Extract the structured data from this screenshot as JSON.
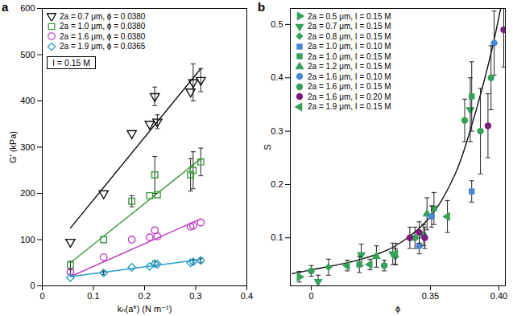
{
  "chart_data": [
    {
      "type": "scatter",
      "title": "a",
      "x_label": "kₙ(a*) (N m⁻¹)",
      "y_label": "G′ (kPa)",
      "xlim": [
        0,
        0.4
      ],
      "xticks": [
        0,
        0.1,
        0.2,
        0.3,
        0.4
      ],
      "ylim": [
        0,
        600
      ],
      "yticks": [
        0,
        100,
        200,
        300,
        400,
        500,
        600
      ],
      "annotation": "I = 0.15 M",
      "series": [
        {
          "name": "2a = 0.7 μm, ϕ = 0.0380",
          "color": "#111111",
          "marker": "open-triangle-down",
          "x": [
            0.055,
            0.12,
            0.175,
            0.21,
            0.22,
            0.225,
            0.29,
            0.295,
            0.31
          ],
          "values": [
            95,
            200,
            330,
            350,
            410,
            355,
            420,
            440,
            445
          ],
          "errors": [
            null,
            null,
            null,
            null,
            20,
            15,
            null,
            40,
            25
          ],
          "fit": {
            "x": [
              0.055,
              0.31
            ],
            "values": [
              125,
              470
            ]
          }
        },
        {
          "name": "2a = 1.0 μm, ϕ = 0.0380",
          "color": "#3a9a3a",
          "marker": "open-square",
          "x": [
            0.055,
            0.12,
            0.175,
            0.21,
            0.22,
            0.225,
            0.29,
            0.295,
            0.31
          ],
          "values": [
            45,
            100,
            183,
            195,
            240,
            197,
            240,
            250,
            268
          ],
          "errors": [
            8,
            null,
            12,
            null,
            40,
            null,
            35,
            40,
            30
          ],
          "fit": {
            "x": [
              0.055,
              0.31
            ],
            "values": [
              50,
              275
            ]
          }
        },
        {
          "name": "2a = 1.6 μm, ϕ = 0.0380",
          "color": "#c23fc2",
          "marker": "open-circle",
          "x": [
            0.055,
            0.12,
            0.175,
            0.21,
            0.22,
            0.225,
            0.29,
            0.295,
            0.31
          ],
          "values": [
            30,
            62,
            100,
            105,
            120,
            107,
            128,
            130,
            137
          ],
          "errors": [
            5,
            null,
            null,
            null,
            null,
            null,
            null,
            null,
            null
          ],
          "fit": {
            "x": [
              0.055,
              0.31
            ],
            "values": [
              20,
              145
            ]
          }
        },
        {
          "name": "2a = 1.9 μm, ϕ = 0.0365",
          "color": "#2b9fc9",
          "marker": "open-diamond",
          "x": [
            0.055,
            0.12,
            0.175,
            0.21,
            0.22,
            0.225,
            0.29,
            0.295,
            0.31
          ],
          "values": [
            18,
            28,
            40,
            42,
            48,
            47,
            50,
            52,
            55
          ],
          "errors": [
            null,
            4,
            null,
            null,
            6,
            null,
            null,
            5,
            5
          ],
          "fit": {
            "x": [
              0.055,
              0.31
            ],
            "values": [
              20,
              57
            ]
          }
        }
      ]
    },
    {
      "type": "scatter",
      "title": "b",
      "x_label": "ϕ",
      "y_label": "S",
      "xlim": [
        -0.21,
        0.404
      ],
      "xticks": [
        0,
        0.35,
        {
          "value": 0.4,
          "label": "0.40"
        }
      ],
      "ylim": [
        0.01,
        0.53
      ],
      "yticks": [
        0.1,
        0.2,
        0.3,
        0.4,
        0.5
      ],
      "curve": {
        "color": "#111111",
        "x": [
          -0.204,
          0,
          0.271,
          0.316,
          0.35,
          0.37,
          0.383,
          0.3945,
          0.4011
        ],
        "values": [
          0.033,
          0.04,
          0.06,
          0.085,
          0.14,
          0.22,
          0.32,
          0.44,
          0.53
        ]
      },
      "series": [
        {
          "name": "2a = 0.5 μm, I = 0.15 M",
          "color": "#35a05a",
          "marker": "triangle-right",
          "x": [
            -0.178
          ],
          "values": [
            0.027
          ],
          "errors": [
            0.01
          ]
        },
        {
          "name": "2a = 0.7 μm, I = 0.15 M",
          "color": "#35a05a",
          "marker": "triangle-down",
          "x": [
            0.151,
            0.271,
            0.313,
            0.381
          ],
          "values": [
            0.018,
            0.068,
            0.07,
            0.34
          ],
          "errors": [
            0.012,
            0.02,
            0.02,
            0.06
          ]
        },
        {
          "name": "2a = 0.8 μm, I = 0.15 M",
          "color": "#35a05a",
          "marker": "diamond",
          "x": [
            0.198,
            0.316
          ],
          "values": [
            0.045,
            0.065
          ],
          "errors": [
            0.015,
            0.015
          ]
        },
        {
          "name": "2a = 1.0 μm, I = 0.10 M",
          "color": "#4a86d8",
          "marker": "square",
          "x": [
            0.382
          ],
          "values": [
            0.187
          ],
          "errors": [
            0.02
          ]
        },
        {
          "name": "2a = 1.0 μm, I = 0.15 M",
          "color": "#35a05a",
          "marker": "square",
          "x": [
            0.268,
            0.353,
            0.382
          ],
          "values": [
            0.05,
            0.155,
            0.365
          ],
          "errors": [
            0.015,
            0.03,
            0.065
          ]
        },
        {
          "name": "2a = 1.2 μm, I = 0.15 M",
          "color": "#35a05a",
          "marker": "triangle-up",
          "x": [
            0.293,
            0.347
          ],
          "values": [
            0.065,
            0.145
          ],
          "errors": [
            0.02,
            0.03
          ]
        },
        {
          "name": "2a = 1.6 μm, I = 0.10 M",
          "color": "#4a86d8",
          "marker": "circle",
          "x": [
            0.34,
            0.351,
            0.397
          ],
          "values": [
            0.085,
            0.14,
            0.465
          ],
          "errors": [
            0.015,
            0.02,
            0.06
          ]
        },
        {
          "name": "2a = 1.6 μm, I = 0.15 M",
          "color": "#35a05a",
          "marker": "circle",
          "x": [
            0,
            0.303,
            0.336,
            0.344,
            0.377,
            0.388,
            0.395
          ],
          "values": [
            0.038,
            0.048,
            0.1,
            0.105,
            0.32,
            0.3,
            0.4
          ],
          "errors": [
            0.01,
            0.01,
            0.02,
            0.02,
            0.04,
            0.08,
            0.06
          ]
        },
        {
          "name": "2a = 1.6 μm, I = 0.20 M",
          "color": "#7a1c7a",
          "marker": "circle",
          "x": [
            0.331,
            0.34,
            0.345,
            0.393,
            0.403
          ],
          "values": [
            0.1,
            0.11,
            0.1,
            0.31,
            0.49
          ],
          "errors": [
            0.02,
            0.02,
            0.02,
            0.06,
            0.07
          ]
        },
        {
          "name": "2a = 1.9 μm, I = 0.15 M",
          "color": "#35a05a",
          "marker": "triangle-left",
          "x": [
            0.246,
            0.284,
            0.316,
            0.364
          ],
          "values": [
            0.048,
            0.05,
            0.07,
            0.14
          ],
          "errors": [
            0.01,
            0.01,
            0.02,
            0.03
          ]
        }
      ]
    }
  ]
}
